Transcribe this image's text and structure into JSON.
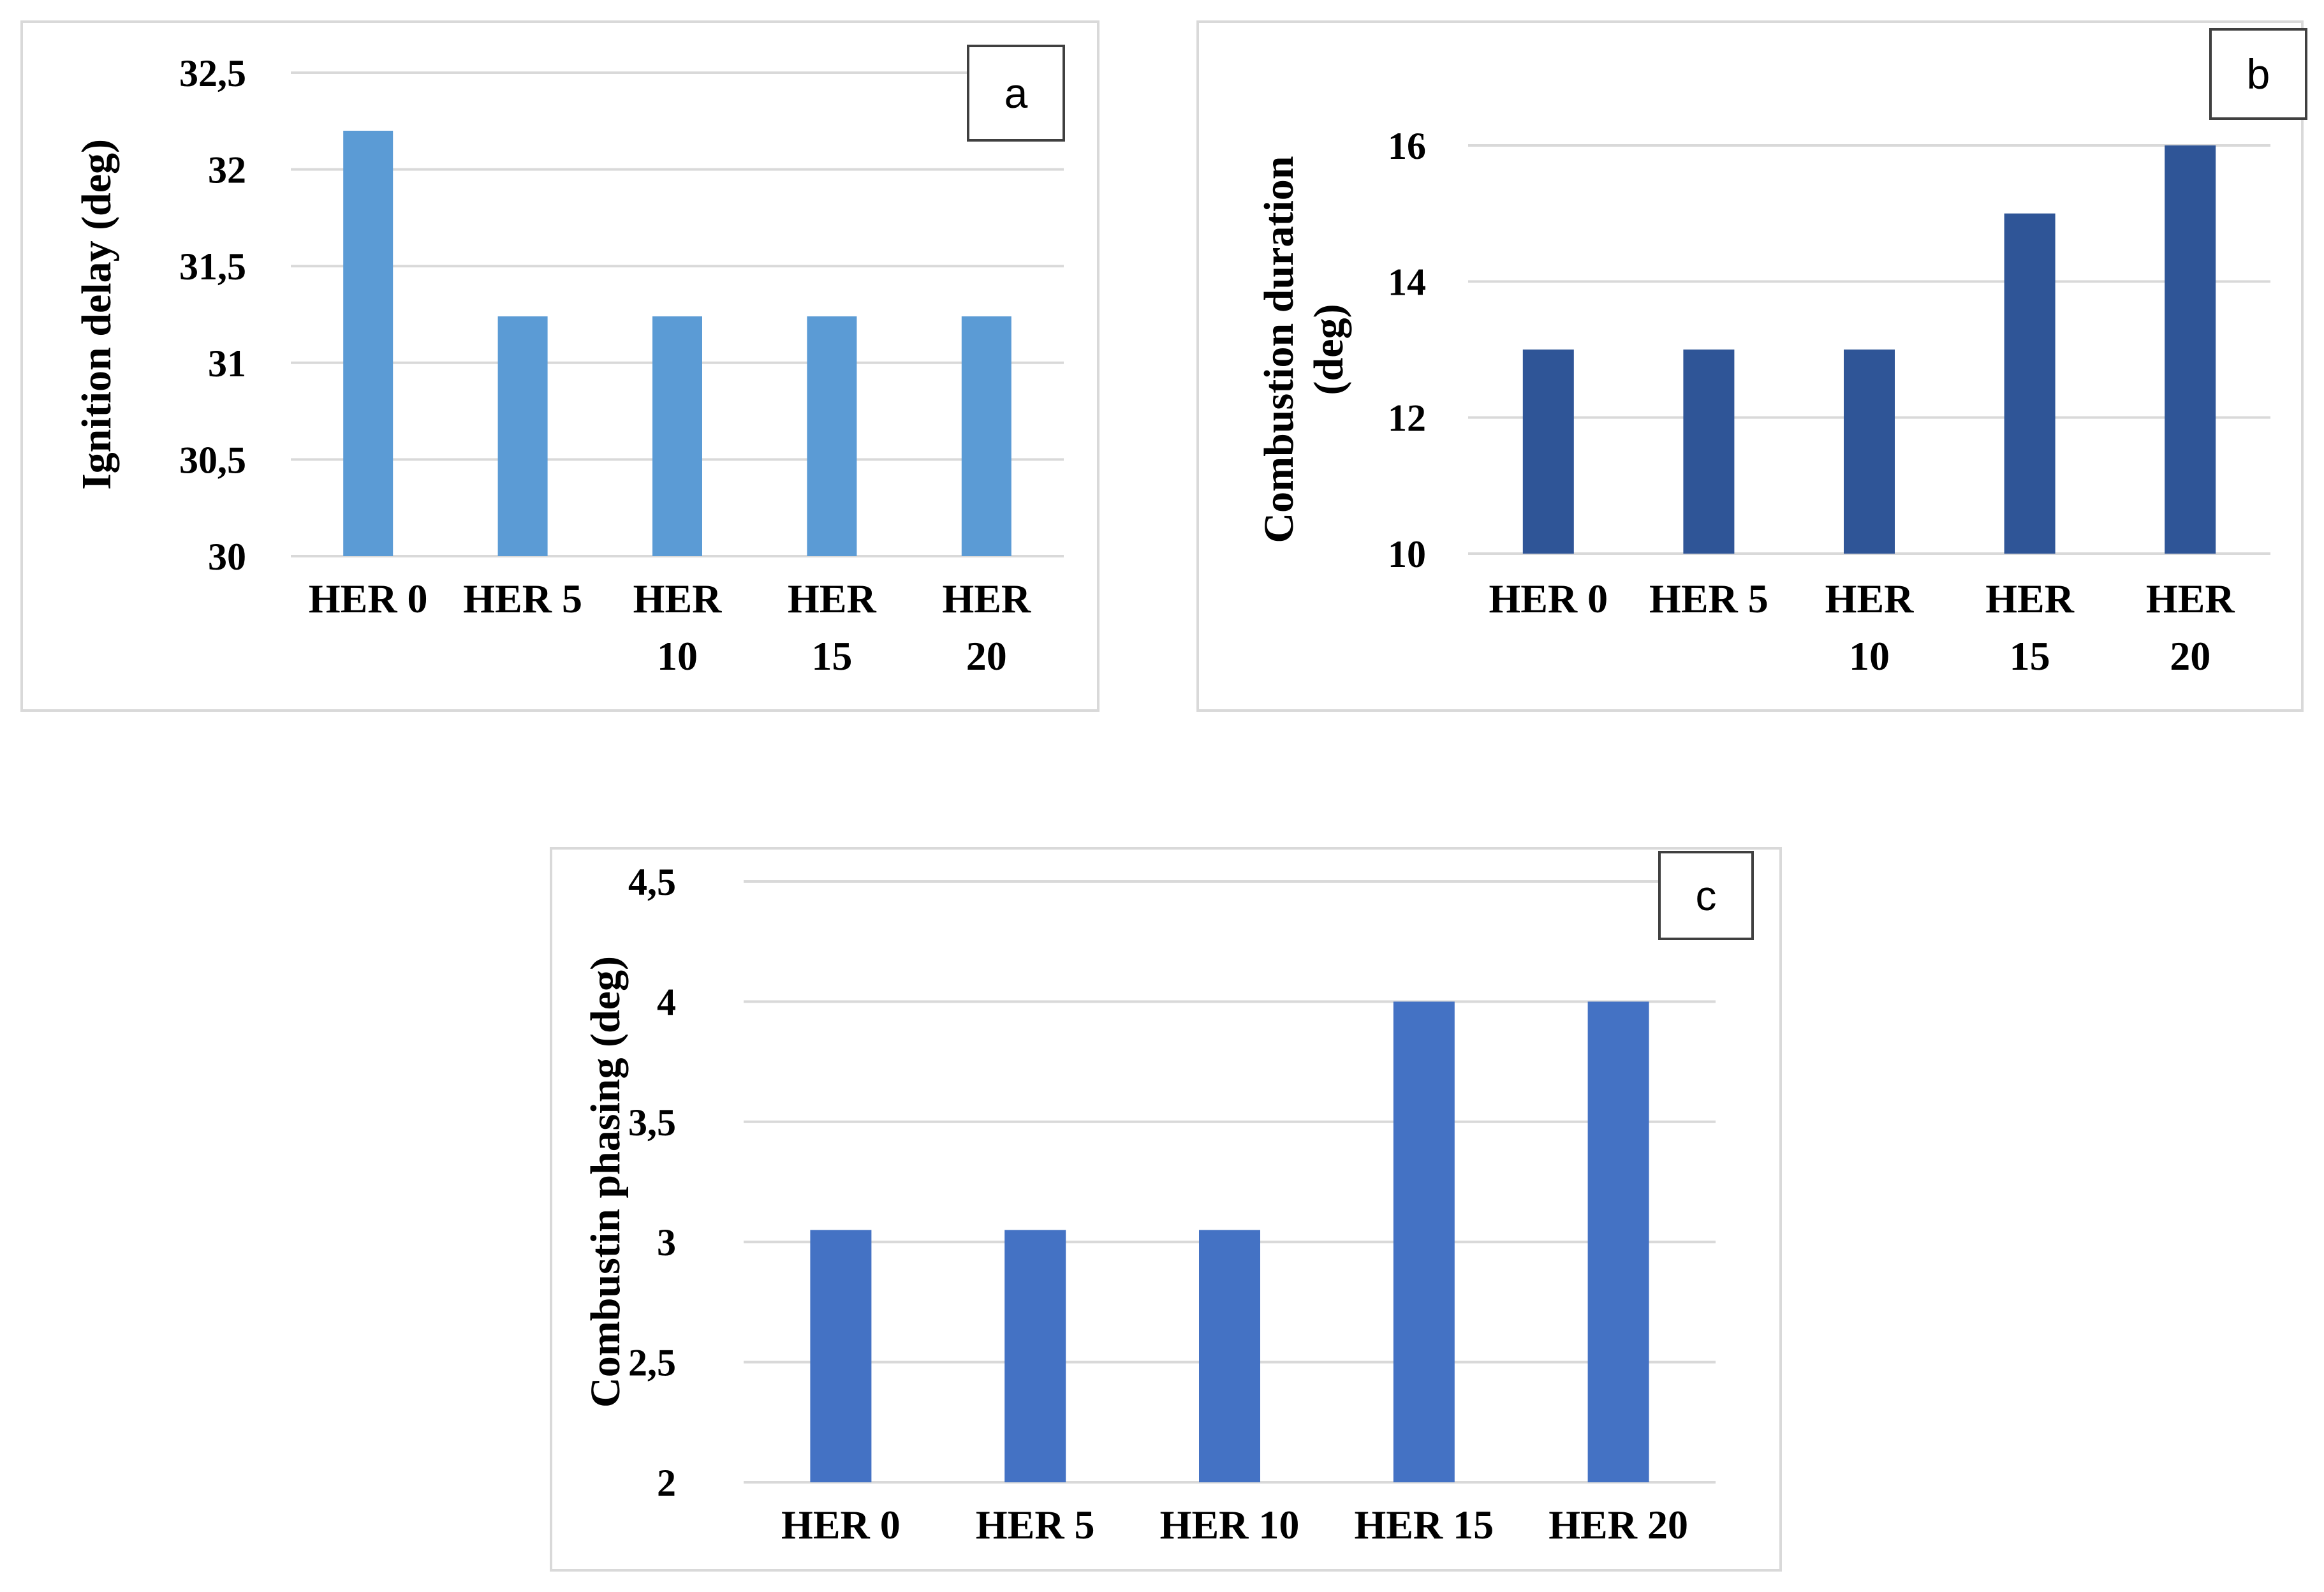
{
  "chart_data": [
    {
      "type": "bar",
      "panel_label": "a",
      "categories": [
        [
          "HER 0"
        ],
        [
          "HER 5"
        ],
        [
          "HER",
          "10"
        ],
        [
          "HER",
          "15"
        ],
        [
          "HER",
          "20"
        ]
      ],
      "values": [
        32.2,
        31.24,
        31.24,
        31.24,
        31.24
      ],
      "ylabel": [
        "Ignition delay (deg)"
      ],
      "ylim": [
        30,
        32.5
      ],
      "yticks": [
        "30",
        "30,5",
        "31",
        "31,5",
        "32",
        "32,5"
      ],
      "grid": true,
      "bar_color": "#5b9bd5"
    },
    {
      "type": "bar",
      "panel_label": "b",
      "categories": [
        [
          "HER 0"
        ],
        [
          "HER 5"
        ],
        [
          "HER",
          "10"
        ],
        [
          "HER",
          "15"
        ],
        [
          "HER",
          "20"
        ]
      ],
      "values": [
        13,
        13,
        13,
        15,
        16
      ],
      "ylabel": [
        "Combustion duration",
        "(deg)"
      ],
      "ylim": [
        10,
        16
      ],
      "yticks": [
        "10",
        "12",
        "14",
        "16"
      ],
      "grid": true,
      "bar_color": "#2f5597"
    },
    {
      "type": "bar",
      "panel_label": "c",
      "categories": [
        [
          "HER 0"
        ],
        [
          "HER 5"
        ],
        [
          "HER 10"
        ],
        [
          "HER 15"
        ],
        [
          "HER 20"
        ]
      ],
      "values": [
        3.05,
        3.05,
        3.05,
        4.0,
        4.0
      ],
      "ylabel": [
        "Combustin phasing (deg)"
      ],
      "ylim": [
        2,
        4.5
      ],
      "yticks": [
        "2",
        "2,5",
        "3",
        "3,5",
        "4",
        "4,5"
      ],
      "grid": true,
      "bar_color": "#4472c4"
    }
  ]
}
